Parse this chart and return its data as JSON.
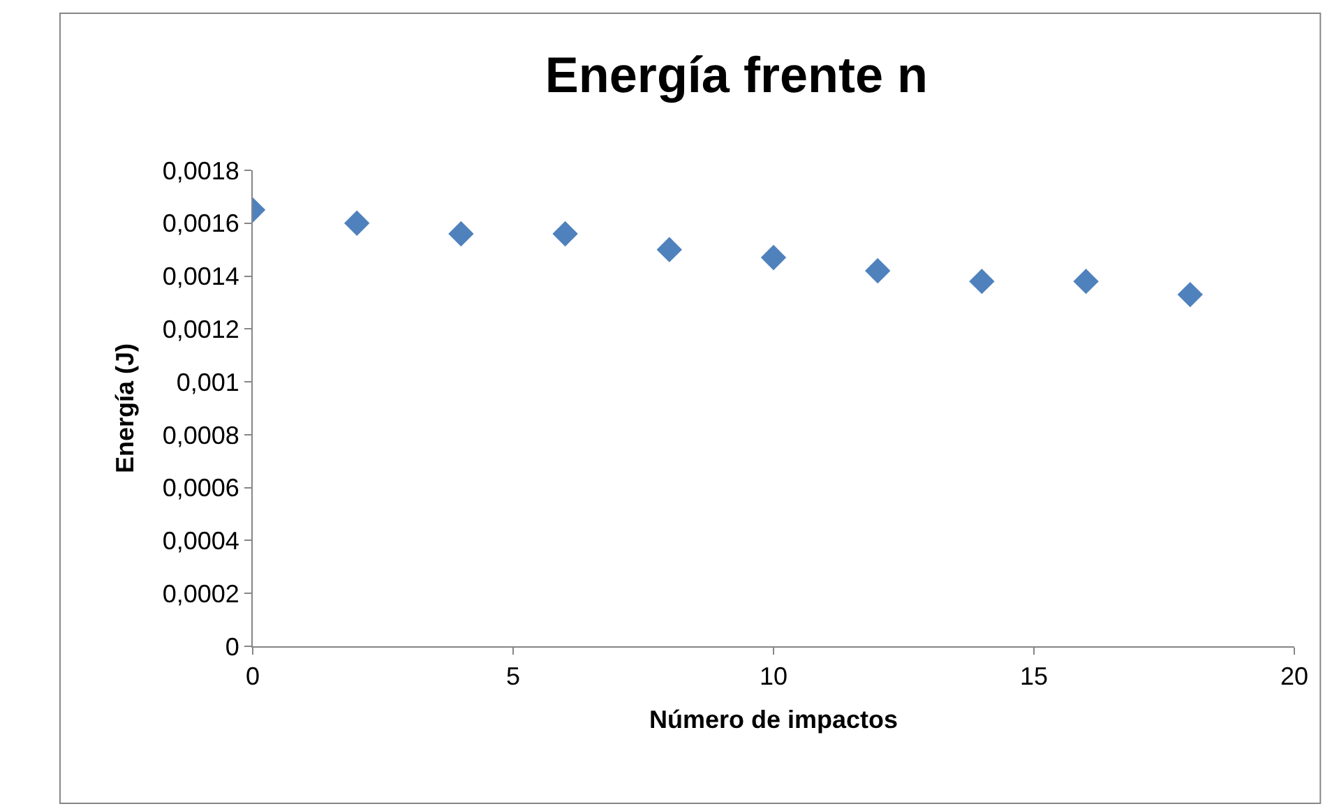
{
  "chart_data": {
    "type": "scatter",
    "title": "Energía frente n",
    "xlabel": "Número de impactos",
    "ylabel": "Energía (J)",
    "x": [
      0,
      2,
      4,
      6,
      8,
      10,
      12,
      14,
      16,
      18
    ],
    "series": [
      {
        "color": "#4f81bd",
        "values": [
          0.00165,
          0.0016,
          0.00156,
          0.00156,
          0.0015,
          0.00147,
          0.00142,
          0.00138,
          0.00138,
          0.00133
        ]
      }
    ],
    "xlim": [
      0,
      20
    ],
    "xticks": [
      0,
      5,
      10,
      15,
      20
    ],
    "ylim": [
      0,
      0.0018
    ],
    "yticks": [
      {
        "value": 0,
        "label": "0"
      },
      {
        "value": 0.0002,
        "label": "0,0002"
      },
      {
        "value": 0.0004,
        "label": "0,0004"
      },
      {
        "value": 0.0006,
        "label": "0,0006"
      },
      {
        "value": 0.0008,
        "label": "0,0008"
      },
      {
        "value": 0.001,
        "label": "0,001"
      },
      {
        "value": 0.0012,
        "label": "0,0012"
      },
      {
        "value": 0.0014,
        "label": "0,0014"
      },
      {
        "value": 0.0016,
        "label": "0,0016"
      },
      {
        "value": 0.0018,
        "label": "0,0018"
      }
    ],
    "marker": "diamond"
  }
}
